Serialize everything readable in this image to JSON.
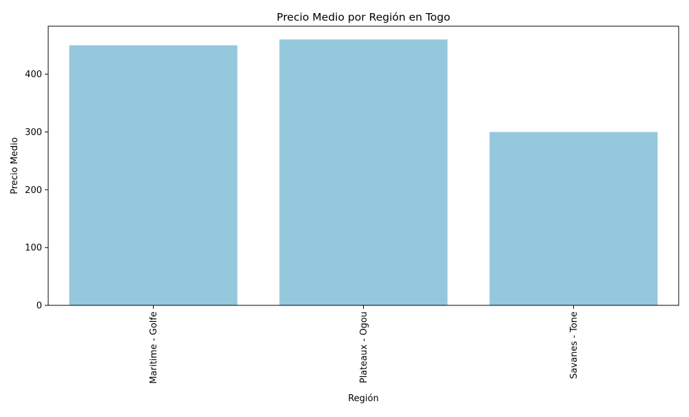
{
  "chart_data": {
    "type": "bar",
    "title": "Precio Medio por Región en Togo",
    "xlabel": "Región",
    "ylabel": "Precio Medio",
    "categories": [
      "Maritime - Golfe",
      "Plateaux - Ogou",
      "Savanes - Tone"
    ],
    "values": [
      450,
      460,
      300
    ],
    "ylim": [
      0,
      483
    ],
    "yticks": [
      0,
      100,
      200,
      300,
      400
    ],
    "bar_color": "#95c8dd",
    "grid": false,
    "legend": "none"
  }
}
